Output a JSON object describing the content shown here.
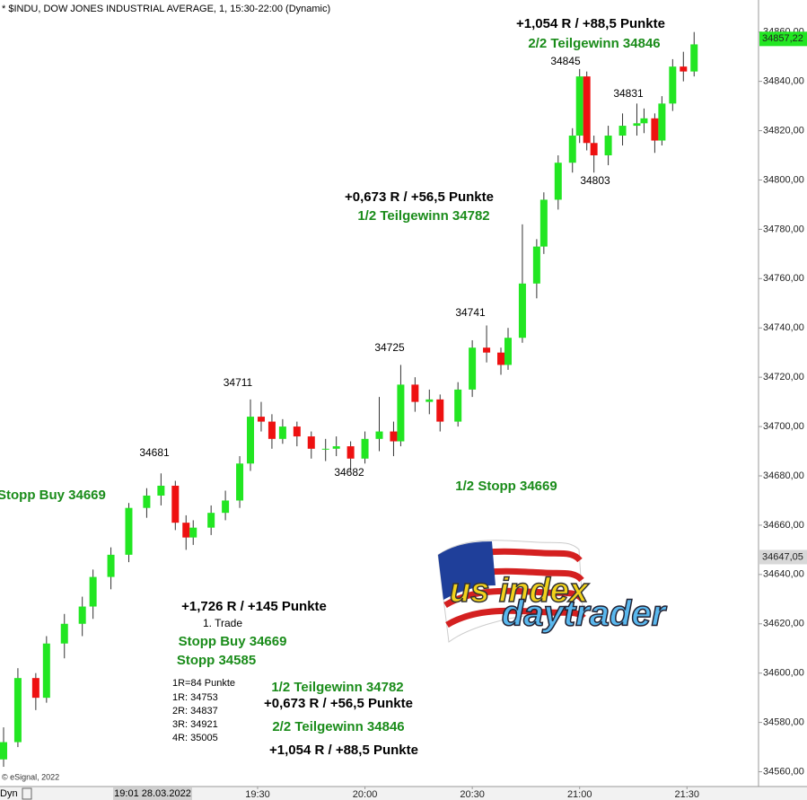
{
  "chart_data": {
    "type": "candlestick",
    "title": "* $INDU, DOW JONES INDUSTRIAL AVERAGE, 1, 15:30-22:00 (Dynamic)",
    "x": [
      "18:19",
      "18:23",
      "18:28",
      "18:31",
      "18:36",
      "18:41",
      "18:44",
      "18:49",
      "18:54",
      "18:59",
      "19:03",
      "19:07",
      "19:10",
      "19:12",
      "19:17",
      "19:21",
      "19:25",
      "19:28",
      "19:31",
      "19:34",
      "19:37",
      "19:41",
      "19:45",
      "19:49",
      "19:52",
      "19:56",
      "20:00",
      "20:04",
      "20:08",
      "20:10",
      "20:14",
      "20:18",
      "20:21",
      "20:26",
      "20:30",
      "20:34",
      "20:38",
      "20:40",
      "20:44",
      "20:48",
      "20:50",
      "20:54",
      "20:58",
      "21:00",
      "21:02",
      "21:04",
      "21:08",
      "21:12",
      "21:16",
      "21:18",
      "21:21",
      "21:23",
      "21:26",
      "21:29",
      "21:32"
    ],
    "open": [
      34565,
      34572,
      34598,
      34590,
      34612,
      34620,
      34627,
      34639,
      34648,
      34667,
      34672,
      34676,
      34661,
      34655,
      34659,
      34665,
      34670,
      34685,
      34704,
      34702,
      34695,
      34700,
      34696,
      34691,
      34691,
      34692,
      34687,
      34695,
      34698,
      34694,
      34717,
      34710,
      34711,
      34702,
      34715,
      34732,
      34730,
      34725,
      34736,
      34758,
      34773,
      34792,
      34807,
      34818,
      34842,
      34815,
      34810,
      34818,
      34822,
      34823,
      34825,
      34816,
      34831,
      34846,
      34844
    ],
    "high": [
      34578,
      34602,
      34600,
      34615,
      34624,
      34631,
      34642,
      34651,
      34669,
      34675,
      34681,
      34678,
      34664,
      34662,
      34668,
      34674,
      34688,
      34711,
      34710,
      34705,
      34703,
      34702,
      34698,
      34695,
      34696,
      34694,
      34698,
      34712,
      34702,
      34725,
      34720,
      34715,
      34713,
      34718,
      34735,
      34741,
      34732,
      34740,
      34782,
      34776,
      34795,
      34810,
      34821,
      34845,
      34844,
      34818,
      34822,
      34827,
      34831,
      34829,
      34827,
      34834,
      34849,
      34852,
      34860
    ],
    "low": [
      34562,
      34570,
      34585,
      34588,
      34606,
      34615,
      34622,
      34634,
      34645,
      34663,
      34668,
      34658,
      34650,
      34652,
      34656,
      34662,
      34667,
      34682,
      34698,
      34691,
      34693,
      34692,
      34687,
      34686,
      34688,
      34682,
      34685,
      34690,
      34688,
      34692,
      34706,
      34705,
      34698,
      34700,
      34712,
      34726,
      34721,
      34723,
      34734,
      34752,
      34770,
      34788,
      34803,
      34815,
      34812,
      34803,
      34806,
      34814,
      34818,
      34819,
      34811,
      34814,
      34828,
      34840,
      34842
    ],
    "close": [
      34572,
      34598,
      34590,
      34612,
      34620,
      34627,
      34639,
      34648,
      34667,
      34672,
      34676,
      34661,
      34655,
      34659,
      34665,
      34670,
      34685,
      34704,
      34702,
      34695,
      34700,
      34696,
      34691,
      34691,
      34692,
      34687,
      34695,
      34698,
      34694,
      34717,
      34710,
      34711,
      34702,
      34715,
      34732,
      34730,
      34725,
      34736,
      34758,
      34773,
      34792,
      34807,
      34818,
      34842,
      34815,
      34810,
      34818,
      34822,
      34823,
      34825,
      34816,
      34831,
      34846,
      34844,
      34855
    ],
    "up_color": "#22e622",
    "down_color": "#ee1111",
    "xlim": [
      "18:18",
      "21:50"
    ],
    "xticks": [
      "19:30",
      "20:00",
      "20:30",
      "21:00",
      "21:30"
    ],
    "ylim": [
      34554,
      34873
    ],
    "yticks": [
      {
        "value": 34560,
        "label": "34560,00"
      },
      {
        "value": 34580,
        "label": "34580,00"
      },
      {
        "value": 34600,
        "label": "34600,00"
      },
      {
        "value": 34620,
        "label": "34620,00"
      },
      {
        "value": 34640,
        "label": "34640,00"
      },
      {
        "value": 34660,
        "label": "34660,00"
      },
      {
        "value": 34680,
        "label": "34680,00"
      },
      {
        "value": 34700,
        "label": "34700,00"
      },
      {
        "value": 34720,
        "label": "34720,00"
      },
      {
        "value": 34740,
        "label": "34740,00"
      },
      {
        "value": 34760,
        "label": "34760,00"
      },
      {
        "value": 34780,
        "label": "34780,00"
      },
      {
        "value": 34800,
        "label": "34800,00"
      },
      {
        "value": 34820,
        "label": "34820,00"
      },
      {
        "value": 34840,
        "label": "34840,00"
      },
      {
        "value": 34860,
        "label": "34860,00"
      }
    ],
    "price_markers": [
      {
        "value": 34857.22,
        "label": "34857,22",
        "color": "#22e622"
      },
      {
        "value": 34647.05,
        "label": "34647,05",
        "color": "#d8d8d8"
      }
    ],
    "annotations": [
      {
        "text": "+1,054 R / +88,5 Punkte",
        "color": "#000000"
      },
      {
        "text": "2/2 Teilgewinn 34846",
        "color": "#1a8c1a"
      },
      {
        "text": "34845",
        "color": "#000000"
      },
      {
        "text": "34831",
        "color": "#000000"
      },
      {
        "text": "34803",
        "color": "#000000"
      },
      {
        "text": "+0,673 R / +56,5 Punkte",
        "color": "#000000"
      },
      {
        "text": "1/2 Teilgewinn 34782",
        "color": "#1a8c1a"
      },
      {
        "text": "34741",
        "color": "#000000"
      },
      {
        "text": "34725",
        "color": "#000000"
      },
      {
        "text": "34711",
        "color": "#000000"
      },
      {
        "text": "34681",
        "color": "#000000"
      },
      {
        "text": "34682",
        "color": "#000000"
      },
      {
        "text": "Stopp Buy 34669",
        "color": "#1a8c1a"
      },
      {
        "text": "1/2 Stopp 34669",
        "color": "#1a8c1a"
      },
      {
        "text": "+1,726 R / +145 Punkte",
        "color": "#000000"
      },
      {
        "text": "1. Trade",
        "color": "#000000"
      },
      {
        "text": "Stopp Buy 34669",
        "color": "#1a8c1a"
      },
      {
        "text": "Stopp 34585",
        "color": "#1a8c1a"
      },
      {
        "text": "1R=84 Punkte",
        "color": "#000000"
      },
      {
        "text": "1R: 34753",
        "color": "#000000"
      },
      {
        "text": "2R: 34837",
        "color": "#000000"
      },
      {
        "text": "3R: 34921",
        "color": "#000000"
      },
      {
        "text": "4R: 35005",
        "color": "#000000"
      },
      {
        "text": "1/2 Teilgewinn 34782",
        "color": "#1a8c1a"
      },
      {
        "text": "+0,673 R / +56,5 Punkte",
        "color": "#000000"
      },
      {
        "text": "2/2 Teilgewinn 34846",
        "color": "#1a8c1a"
      },
      {
        "text": "+1,054 R / +88,5 Punkte",
        "color": "#000000"
      }
    ],
    "source": "© eSignal, 2022",
    "mode": "Dyn",
    "cursor_date": "19:01 28.03.2022"
  },
  "logo": {
    "line1": "us index",
    "line2": "daytrader"
  }
}
